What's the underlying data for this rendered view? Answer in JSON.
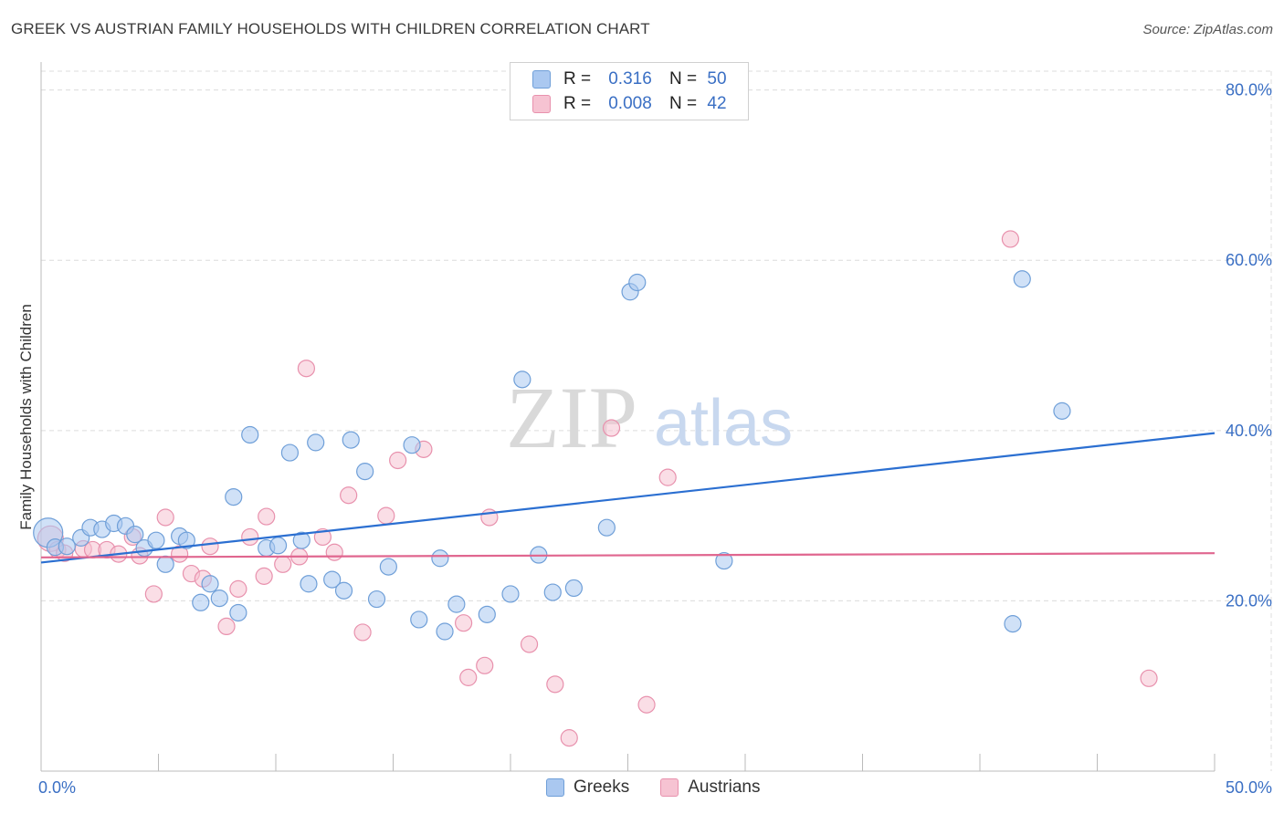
{
  "title": "GREEK VS AUSTRIAN FAMILY HOUSEHOLDS WITH CHILDREN CORRELATION CHART",
  "source": "Source: ZipAtlas.com",
  "watermark": {
    "zip": "ZIP",
    "atlas": "atlas"
  },
  "legend": {
    "greeks": {
      "r_label": "R =",
      "r_value": "0.316",
      "n_label": "N =",
      "n_value": "50"
    },
    "austrians": {
      "r_label": "R =",
      "r_value": "0.008",
      "n_label": "N =",
      "n_value": "42"
    }
  },
  "bottom_legend": {
    "greeks": "Greeks",
    "austrians": "Austrians"
  },
  "colors": {
    "greeks_fill": "#aac8f0",
    "greeks_stroke": "#6f9fd8",
    "greeks_line": "#2b6fd1",
    "austrians_fill": "#f6c3d2",
    "austrians_stroke": "#e891ad",
    "austrians_line": "#e0668f",
    "grid": "#dcdcdc",
    "tick_label": "#3a6fc4"
  },
  "chart_data": {
    "type": "scatter",
    "title": "GREEK VS AUSTRIAN FAMILY HOUSEHOLDS WITH CHILDREN CORRELATION CHART",
    "xlabel": "",
    "ylabel": "Family Households with Children",
    "xlim": [
      0,
      50
    ],
    "ylim": [
      0,
      82
    ],
    "x_tick_labels": [
      {
        "value": 0,
        "label": "0.0%"
      },
      {
        "value": 50,
        "label": "50.0%"
      }
    ],
    "y_tick_labels": [
      {
        "value": 20,
        "label": "20.0%"
      },
      {
        "value": 40,
        "label": "40.0%"
      },
      {
        "value": 60,
        "label": "60.0%"
      },
      {
        "value": 80,
        "label": "80.0%"
      }
    ],
    "x_minor_ticks": [
      5,
      10,
      15,
      20,
      25,
      30,
      35,
      40,
      45,
      50
    ],
    "series": [
      {
        "name": "Greeks",
        "r": 0.316,
        "n": 50,
        "trend": [
          [
            0,
            24.5
          ],
          [
            50,
            39.7
          ]
        ],
        "points": [
          [
            0.3,
            28.0,
            16
          ],
          [
            0.6,
            26.3,
            9
          ],
          [
            1.1,
            26.4,
            9
          ],
          [
            1.7,
            27.4,
            9
          ],
          [
            2.1,
            28.6,
            9
          ],
          [
            2.6,
            28.4,
            9
          ],
          [
            3.1,
            29.1,
            9
          ],
          [
            3.6,
            28.8,
            9
          ],
          [
            4.0,
            27.8,
            9
          ],
          [
            4.4,
            26.2,
            9
          ],
          [
            4.9,
            27.1,
            9
          ],
          [
            5.3,
            24.3,
            9
          ],
          [
            5.9,
            27.6,
            9
          ],
          [
            6.2,
            27.1,
            9
          ],
          [
            6.8,
            19.8,
            9
          ],
          [
            7.2,
            22.0,
            9
          ],
          [
            7.6,
            20.3,
            9
          ],
          [
            8.2,
            32.2,
            9
          ],
          [
            8.4,
            18.6,
            9
          ],
          [
            8.9,
            39.5,
            9
          ],
          [
            9.6,
            26.2,
            9
          ],
          [
            10.1,
            26.5,
            9
          ],
          [
            10.6,
            37.4,
            9
          ],
          [
            11.1,
            27.1,
            9
          ],
          [
            11.4,
            22.0,
            9
          ],
          [
            11.7,
            38.6,
            9
          ],
          [
            12.4,
            22.5,
            9
          ],
          [
            12.9,
            21.2,
            9
          ],
          [
            13.2,
            38.9,
            9
          ],
          [
            13.8,
            35.2,
            9
          ],
          [
            14.3,
            20.2,
            9
          ],
          [
            14.8,
            24.0,
            9
          ],
          [
            15.8,
            38.3,
            9
          ],
          [
            16.1,
            17.8,
            9
          ],
          [
            17.0,
            25.0,
            9
          ],
          [
            17.2,
            16.4,
            9
          ],
          [
            17.7,
            19.6,
            9
          ],
          [
            19.0,
            18.4,
            9
          ],
          [
            20.0,
            20.8,
            9
          ],
          [
            20.5,
            46.0,
            9
          ],
          [
            21.2,
            25.4,
            9
          ],
          [
            21.8,
            21.0,
            9
          ],
          [
            22.7,
            21.5,
            9
          ],
          [
            24.1,
            28.6,
            9
          ],
          [
            25.1,
            56.3,
            9
          ],
          [
            25.4,
            57.4,
            9
          ],
          [
            29.1,
            24.7,
            9
          ],
          [
            41.4,
            17.3,
            9
          ],
          [
            41.8,
            57.8,
            9
          ],
          [
            43.5,
            42.3,
            9
          ]
        ]
      },
      {
        "name": "Austrians",
        "r": 0.008,
        "n": 42,
        "trend": [
          [
            0,
            25.1
          ],
          [
            50,
            25.6
          ]
        ],
        "points": [
          [
            0.4,
            27.3,
            14
          ],
          [
            0.7,
            26.0,
            9
          ],
          [
            1.0,
            25.6,
            9
          ],
          [
            1.8,
            26.1,
            9
          ],
          [
            2.2,
            26.0,
            9
          ],
          [
            2.8,
            26.0,
            9
          ],
          [
            3.3,
            25.5,
            9
          ],
          [
            3.9,
            27.5,
            9
          ],
          [
            4.2,
            25.3,
            9
          ],
          [
            4.8,
            20.8,
            9
          ],
          [
            5.3,
            29.8,
            9
          ],
          [
            5.9,
            25.5,
            9
          ],
          [
            6.4,
            23.2,
            9
          ],
          [
            6.9,
            22.6,
            9
          ],
          [
            7.2,
            26.4,
            9
          ],
          [
            7.9,
            17.0,
            9
          ],
          [
            8.4,
            21.4,
            9
          ],
          [
            8.9,
            27.5,
            9
          ],
          [
            9.5,
            22.9,
            9
          ],
          [
            9.6,
            29.9,
            9
          ],
          [
            10.3,
            24.3,
            9
          ],
          [
            11.0,
            25.2,
            9
          ],
          [
            11.3,
            47.3,
            9
          ],
          [
            12.0,
            27.5,
            9
          ],
          [
            12.5,
            25.7,
            9
          ],
          [
            13.1,
            32.4,
            9
          ],
          [
            13.7,
            16.3,
            9
          ],
          [
            14.7,
            30.0,
            9
          ],
          [
            15.2,
            36.5,
            9
          ],
          [
            16.3,
            37.8,
            9
          ],
          [
            18.0,
            17.4,
            9
          ],
          [
            18.2,
            11.0,
            9
          ],
          [
            18.9,
            12.4,
            9
          ],
          [
            19.1,
            29.8,
            9
          ],
          [
            20.8,
            14.9,
            9
          ],
          [
            21.9,
            10.2,
            9
          ],
          [
            22.5,
            3.9,
            9
          ],
          [
            24.3,
            40.3,
            9
          ],
          [
            25.8,
            7.8,
            9
          ],
          [
            26.7,
            34.5,
            9
          ],
          [
            41.3,
            62.5,
            9
          ],
          [
            47.2,
            10.9,
            9
          ]
        ]
      }
    ]
  }
}
